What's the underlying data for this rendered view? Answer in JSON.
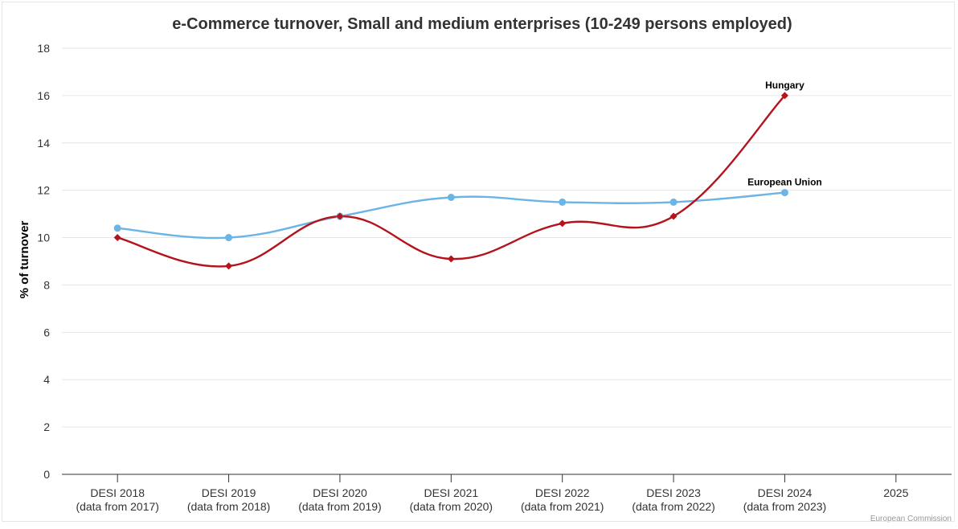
{
  "chart_data": {
    "type": "line",
    "title": "e-Commerce turnover, Small and medium enterprises (10-249 persons employed)",
    "xlabel": "",
    "ylabel": "% of turnover",
    "categories": [
      [
        "DESI 2018",
        "(data from 2017)"
      ],
      [
        "DESI 2019",
        "(data from 2018)"
      ],
      [
        "DESI 2020",
        "(data from 2019)"
      ],
      [
        "DESI 2021",
        "(data from 2020)"
      ],
      [
        "DESI 2022",
        "(data from 2021)"
      ],
      [
        "DESI 2023",
        "(data from 2022)"
      ],
      [
        "DESI 2024",
        "(data from 2023)"
      ],
      [
        "2025"
      ]
    ],
    "ylim": [
      0,
      18
    ],
    "yticks": [
      0,
      2,
      4,
      6,
      8,
      10,
      12,
      14,
      16,
      18
    ],
    "grid": true,
    "legend": "none (series labels at line ends)",
    "series": [
      {
        "name": "European Union",
        "color": "#6ab4e6",
        "marker": "circle",
        "values": [
          10.4,
          10.0,
          10.9,
          11.7,
          11.5,
          11.5,
          11.9,
          null
        ]
      },
      {
        "name": "Hungary",
        "color": "#b5121b",
        "marker": "diamond",
        "values": [
          10.0,
          8.8,
          10.9,
          9.1,
          10.6,
          10.9,
          16.0,
          null
        ]
      }
    ],
    "credit": "European Commission"
  }
}
